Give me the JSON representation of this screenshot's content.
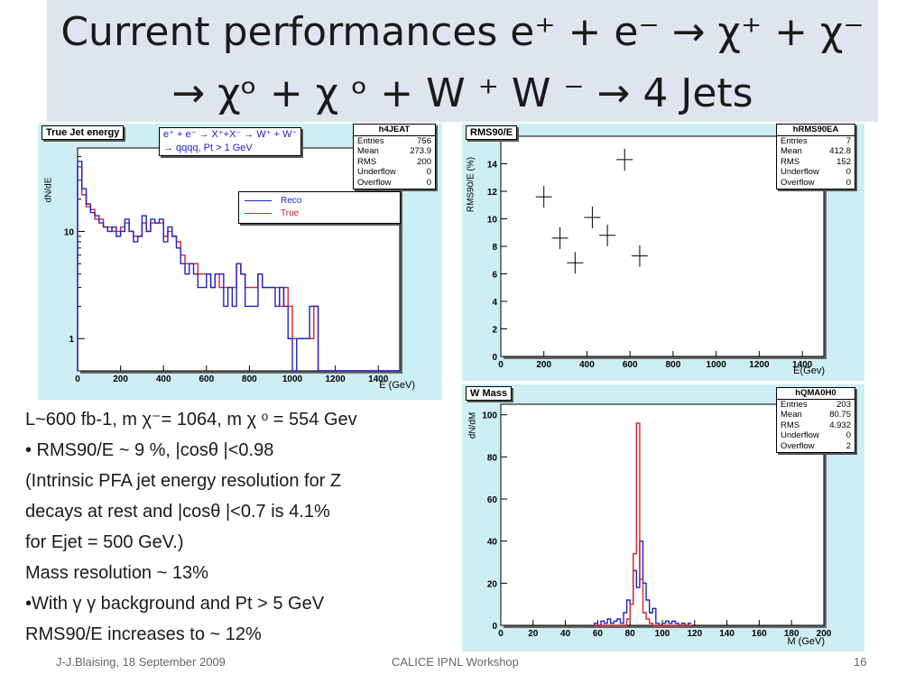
{
  "title": {
    "line1": "Current performances e⁺ + e⁻ → χ⁺ + χ⁻",
    "line2": "→ χᵒ + χ ᵒ + W ⁺ W ⁻ → 4 Jets"
  },
  "body_lines": [
    "L~600 fb-1, m χ⁻= 1064, m χ ᵒ = 554 Gev",
    "• RMS90/E  ~ 9 %, |cosθ |<0.98",
    "(Intrinsic  PFA jet  energy resolution for Z",
    "decays at rest  and |cosθ |<0.7 is 4.1%",
    "for Ejet = 500 GeV.)",
    " Mass resolution ~ 13%",
    "•With γ γ background and Pt > 5 GeV",
    "RMS90/E  increases to ~ 12%"
  ],
  "footer": {
    "author": "J-J.Blaising, 18 September 2009",
    "event": "CALICE IPNL Workshop",
    "page": "16"
  },
  "colors": {
    "reco": "#1f22c8",
    "true": "#e0202a",
    "panel_bg": "#cdeef2",
    "title_bg": "#dfe5ef"
  },
  "charts": {
    "energy": {
      "hist_title": "True Jet energy",
      "process_line1": "e⁺ + e⁻ → X⁺+X⁻ → W⁺ + W⁻",
      "process_line2": "→ qqqq, Pt > 1 GeV",
      "stats": {
        "name": "h4JEAT",
        "rows": [
          {
            "label": "Entries",
            "value": "756"
          },
          {
            "label": "Mean",
            "value": "273.9"
          },
          {
            "label": "RMS",
            "value": "200"
          },
          {
            "label": "Underflow",
            "value": "0"
          },
          {
            "label": "Overflow",
            "value": "0"
          }
        ]
      },
      "legend": [
        {
          "label": "Reco",
          "color": "#1f22c8"
        },
        {
          "label": "True",
          "color": "#e0202a"
        }
      ]
    },
    "rms": {
      "hist_title": "RMS90/E",
      "stats": {
        "name": "hRMS90EA",
        "rows": [
          {
            "label": "Entries",
            "value": "7"
          },
          {
            "label": "Mean",
            "value": "412.8"
          },
          {
            "label": "RMS",
            "value": "152"
          },
          {
            "label": "Underflow",
            "value": "0"
          },
          {
            "label": "Overflow",
            "value": "0"
          }
        ]
      }
    },
    "mass": {
      "hist_title": "W Mass",
      "stats": {
        "name": "hQMA0H0",
        "rows": [
          {
            "label": "Entries",
            "value": "203"
          },
          {
            "label": "Mean",
            "value": "80.75"
          },
          {
            "label": "RMS",
            "value": "4.932"
          },
          {
            "label": "Underflow",
            "value": "0"
          },
          {
            "label": "Overflow",
            "value": "2"
          }
        ]
      }
    }
  },
  "chart_data": [
    {
      "type": "histogram",
      "title": "True Jet energy",
      "xlabel": "E (GeV)",
      "ylabel": "dN/dE",
      "xlim": [
        0,
        1500
      ],
      "yscale": "log",
      "ylim": [
        0.5,
        60
      ],
      "x_ticks": [
        0,
        200,
        400,
        600,
        800,
        1000,
        1200,
        1400
      ],
      "y_tick_labels": [
        {
          "value": 1,
          "label": "1"
        },
        {
          "value": 10,
          "label": "10"
        }
      ],
      "bin_width": 20,
      "x_start": 0,
      "series": [
        {
          "name": "Reco",
          "color": "#1f22c8",
          "values": [
            45,
            25,
            18,
            15,
            14,
            12,
            11,
            10,
            11,
            9,
            10,
            13,
            10,
            8,
            9,
            14,
            10,
            13,
            12,
            13,
            8,
            11,
            9,
            7,
            5,
            4,
            5,
            4,
            3,
            3,
            4,
            3,
            4,
            4,
            2,
            3,
            2,
            5,
            4,
            2,
            2,
            2,
            4,
            3,
            3,
            3,
            2,
            3,
            2,
            1,
            0,
            1,
            1,
            1,
            2,
            2,
            0,
            0,
            0,
            0,
            0,
            0,
            0,
            0,
            0,
            0,
            0,
            0,
            0,
            0,
            0,
            0,
            0,
            0,
            0
          ]
        },
        {
          "name": "True",
          "color": "#e0202a",
          "values": [
            40,
            22,
            17,
            16,
            13,
            13,
            11,
            11,
            10,
            10,
            11,
            12,
            10,
            9,
            9,
            12,
            10,
            12,
            12,
            12,
            9,
            10,
            9,
            8,
            6,
            5,
            5,
            5,
            4,
            4,
            4,
            3,
            4,
            3,
            3,
            3,
            3,
            5,
            4,
            3,
            3,
            3,
            4,
            3,
            3,
            3,
            3,
            2,
            3,
            2,
            1,
            1,
            1,
            1,
            1,
            2,
            0,
            0,
            0,
            0,
            0,
            0,
            0,
            0,
            0,
            0,
            0,
            0,
            0,
            0,
            0,
            0,
            0,
            0,
            0
          ]
        }
      ]
    },
    {
      "type": "scatter",
      "title": "RMS90/E",
      "xlabel": "E(Gev)",
      "ylabel": "RMS90/E (%)",
      "xlim": [
        0,
        1500
      ],
      "ylim": [
        0,
        16
      ],
      "x_ticks": [
        0,
        200,
        400,
        600,
        800,
        1000,
        1200,
        1400
      ],
      "y_ticks": [
        0,
        2,
        4,
        6,
        8,
        10,
        12,
        14
      ],
      "points": [
        {
          "x": 200,
          "y": 11.6
        },
        {
          "x": 275,
          "y": 8.6
        },
        {
          "x": 345,
          "y": 6.8
        },
        {
          "x": 425,
          "y": 10.1
        },
        {
          "x": 495,
          "y": 8.8
        },
        {
          "x": 575,
          "y": 14.3
        },
        {
          "x": 645,
          "y": 7.3
        }
      ]
    },
    {
      "type": "histogram",
      "title": "W Mass",
      "xlabel": "M (GeV)",
      "ylabel": "dN/dM",
      "xlim": [
        0,
        200
      ],
      "ylim": [
        0,
        105
      ],
      "x_ticks": [
        0,
        20,
        40,
        60,
        80,
        100,
        120,
        140,
        160,
        180,
        200
      ],
      "y_ticks": [
        0,
        20,
        40,
        60,
        80,
        100
      ],
      "bin_width": 2,
      "x_start": 58,
      "series": [
        {
          "name": "Reco",
          "color": "#1f22c8",
          "values": [
            1,
            0,
            2,
            1,
            3,
            1,
            2,
            3,
            1,
            6,
            12,
            10,
            26,
            18,
            40,
            20,
            12,
            6,
            8,
            1,
            0,
            1,
            2,
            1,
            2,
            1,
            0,
            1,
            0,
            1
          ]
        },
        {
          "name": "True",
          "color": "#e0202a",
          "values": [
            0,
            0,
            0,
            0,
            0,
            0,
            0,
            0,
            0,
            0,
            3,
            10,
            34,
            96,
            22,
            6,
            3,
            1,
            0,
            0,
            0,
            0,
            0,
            0,
            0,
            0,
            0,
            0,
            0,
            0
          ]
        }
      ]
    }
  ]
}
